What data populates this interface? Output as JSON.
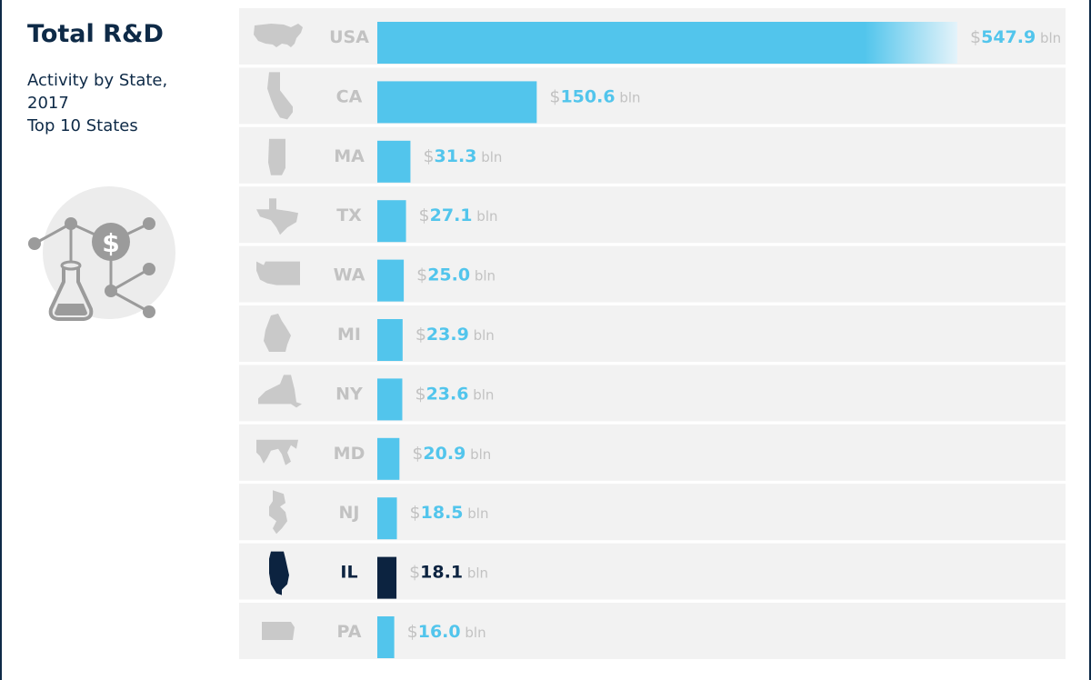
{
  "header": {
    "title": "Total R&D",
    "subtitle_lines": [
      "Activity by State,",
      "2017",
      "Top 10 States"
    ]
  },
  "colors": {
    "bar": "#52c5ec",
    "highlight": "#0c2340",
    "row_bg": "#f2f2f2",
    "label_gray": "#c2c2c2",
    "dark_text": "#0e2a47",
    "value_blue": "#52c5ec"
  },
  "chart_data": {
    "type": "bar",
    "orientation": "horizontal",
    "categories": [
      "USA",
      "CA",
      "MA",
      "TX",
      "WA",
      "MI",
      "NY",
      "MD",
      "NJ",
      "IL",
      "PA"
    ],
    "values": [
      547.9,
      150.6,
      31.3,
      27.1,
      25.0,
      23.9,
      23.6,
      20.9,
      18.5,
      18.1,
      16.0
    ],
    "value_labels": [
      "547.9",
      "150.6",
      "31.3",
      "27.1",
      "25.0",
      "23.9",
      "23.6",
      "20.9",
      "18.5",
      "18.1",
      "16.0"
    ],
    "value_prefix": "$",
    "value_unit": "bln",
    "highlight": "IL",
    "icons": [
      "usa-map-icon",
      "california-icon",
      "massachusetts-icon",
      "texas-icon",
      "washington-icon",
      "michigan-icon",
      "new-york-icon",
      "maryland-icon",
      "new-jersey-icon",
      "illinois-icon",
      "pennsylvania-icon"
    ]
  }
}
